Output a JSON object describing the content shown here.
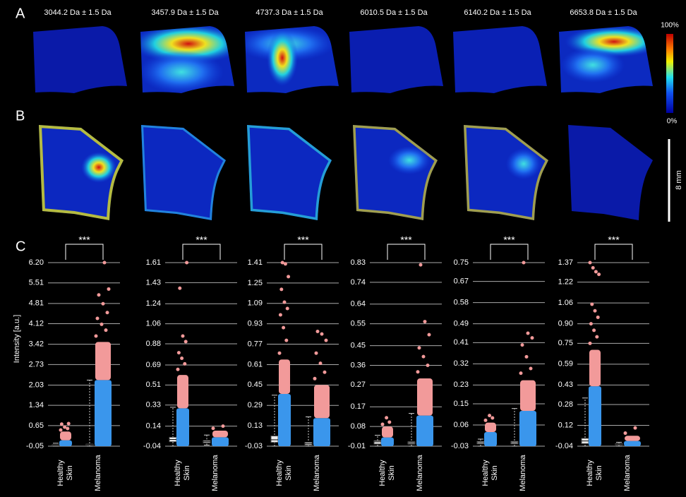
{
  "panels": {
    "a": "A",
    "b": "B",
    "c": "C"
  },
  "mass_labels": [
    "3044.2 Da ± 1.5 Da",
    "3457.9 Da ± 1.5 Da",
    "4737.3 Da ± 1.5 Da",
    "6010.5 Da ± 1.5 Da",
    "6140.2 Da ± 1.5 Da",
    "6653.8 Da ± 1.5 Da"
  ],
  "colorbar": {
    "max": "100%",
    "min": "0%"
  },
  "scale_bar": "8 mm",
  "chart_data": [
    {
      "type": "strip",
      "ylabel": "Intensity [a.u.]",
      "annotation": "***",
      "categories": [
        "Healthy\nSkin",
        "Melanoma"
      ],
      "colors": [
        "#3a96ec",
        "#f29a9a"
      ],
      "ylim": [
        -0.05,
        6.2
      ],
      "yticks": [
        -0.05,
        0.65,
        1.34,
        2.03,
        2.73,
        3.42,
        4.12,
        4.81,
        5.51,
        {
          "value": 6.2,
          "label": "6.20"
        }
      ],
      "series": [
        {
          "box": {
            "min": -0.05,
            "q1": -0.03,
            "median": -0.02,
            "q3": 0.0,
            "max": 0.05
          },
          "blue": [
            -0.05,
            0.15
          ],
          "pink": [
            0.15,
            0.45
          ],
          "outliers": [
            0.5,
            0.55,
            0.6,
            0.7,
            0.72
          ]
        },
        {
          "box": {
            "min": -0.05,
            "q1": -0.01,
            "median": 0.0,
            "q3": 0.02,
            "max": 2.2
          },
          "blue": [
            -0.05,
            2.2
          ],
          "pink": [
            2.2,
            3.5
          ],
          "outliers": [
            3.7,
            3.9,
            4.1,
            4.3,
            4.5,
            4.8,
            5.1,
            5.3,
            6.2
          ]
        }
      ]
    },
    {
      "type": "strip",
      "annotation": "***",
      "categories": [
        "Healthy\nSkin",
        "Melanoma"
      ],
      "colors": [
        "#3a96ec",
        "#f29a9a"
      ],
      "ylim": [
        -0.04,
        1.61
      ],
      "yticks": [
        -0.04,
        0.14,
        0.33,
        0.51,
        0.69,
        0.88,
        1.06,
        1.24,
        1.43,
        1.61
      ],
      "series": [
        {
          "box": {
            "min": -0.04,
            "q1": 0.0,
            "median": 0.02,
            "q3": 0.04,
            "max": 0.31
          },
          "blue": [
            -0.04,
            0.3
          ],
          "pink": [
            0.3,
            0.6
          ],
          "outliers": [
            0.65,
            0.7,
            0.75,
            0.8,
            0.9,
            0.95,
            1.38,
            1.61
          ]
        },
        {
          "box": {
            "min": -0.03,
            "q1": -0.01,
            "median": 0.0,
            "q3": 0.01,
            "max": 0.06
          },
          "blue": [
            -0.04,
            0.04
          ],
          "pink": [
            0.04,
            0.1
          ],
          "outliers": [
            0.12,
            0.14
          ]
        }
      ]
    },
    {
      "type": "strip",
      "annotation": "***",
      "categories": [
        "Healthy\nSkin",
        "Melanoma"
      ],
      "colors": [
        "#3a96ec",
        "#f29a9a"
      ],
      "ylim": [
        -0.03,
        1.41
      ],
      "yticks": [
        -0.03,
        0.13,
        0.29,
        0.45,
        0.61,
        0.77,
        0.93,
        1.09,
        1.25,
        1.41
      ],
      "series": [
        {
          "box": {
            "min": -0.03,
            "q1": 0.0,
            "median": 0.02,
            "q3": 0.05,
            "max": 0.37
          },
          "blue": [
            -0.03,
            0.38
          ],
          "pink": [
            0.38,
            0.65
          ],
          "outliers": [
            0.7,
            0.8,
            0.9,
            1.0,
            1.05,
            1.1,
            1.2,
            1.3,
            1.4,
            1.41
          ]
        },
        {
          "box": {
            "min": -0.03,
            "q1": -0.02,
            "median": -0.01,
            "q3": 0.0,
            "max": 0.2
          },
          "blue": [
            -0.03,
            0.19
          ],
          "pink": [
            0.19,
            0.45
          ],
          "outliers": [
            0.5,
            0.55,
            0.62,
            0.7,
            0.8,
            0.85,
            0.87
          ]
        }
      ]
    },
    {
      "type": "strip",
      "annotation": "***",
      "categories": [
        "Healthy\nSkin",
        "Melanoma"
      ],
      "colors": [
        "#3a96ec",
        "#f29a9a"
      ],
      "ylim": [
        -0.01,
        0.83
      ],
      "yticks": [
        -0.01,
        0.08,
        0.17,
        0.27,
        0.36,
        0.45,
        0.55,
        0.64,
        0.74,
        0.83
      ],
      "series": [
        {
          "box": {
            "min": -0.01,
            "q1": 0.0,
            "median": 0.01,
            "q3": 0.015,
            "max": 0.04
          },
          "blue": [
            -0.01,
            0.03
          ],
          "pink": [
            0.03,
            0.08
          ],
          "outliers": [
            0.09,
            0.1,
            0.12
          ]
        },
        {
          "box": {
            "min": -0.01,
            "q1": 0.0,
            "median": 0.005,
            "q3": 0.01,
            "max": 0.14
          },
          "blue": [
            -0.01,
            0.13
          ],
          "pink": [
            0.13,
            0.3
          ],
          "outliers": [
            0.33,
            0.36,
            0.4,
            0.44,
            0.5,
            0.56,
            0.82
          ]
        }
      ]
    },
    {
      "type": "strip",
      "annotation": "***",
      "categories": [
        "Healthy\nSkin",
        "Melanoma"
      ],
      "colors": [
        "#3a96ec",
        "#f29a9a"
      ],
      "ylim": [
        -0.03,
        0.75
      ],
      "yticks": [
        -0.03,
        0.06,
        0.15,
        0.23,
        0.32,
        0.41,
        0.49,
        0.58,
        0.67,
        0.75
      ],
      "series": [
        {
          "box": {
            "min": -0.03,
            "q1": -0.02,
            "median": -0.015,
            "q3": -0.01,
            "max": 0.0
          },
          "blue": [
            -0.03,
            0.03
          ],
          "pink": [
            0.03,
            0.07
          ],
          "outliers": [
            0.08,
            0.09,
            0.1
          ]
        },
        {
          "box": {
            "min": -0.03,
            "q1": -0.02,
            "median": -0.015,
            "q3": -0.01,
            "max": 0.13
          },
          "blue": [
            -0.03,
            0.12
          ],
          "pink": [
            0.12,
            0.25
          ],
          "outliers": [
            0.28,
            0.3,
            0.35,
            0.4,
            0.43,
            0.45,
            0.75
          ]
        }
      ]
    },
    {
      "type": "strip",
      "annotation": "***",
      "categories": [
        "Healthy\nSkin",
        "Melanoma"
      ],
      "colors": [
        "#3a96ec",
        "#f29a9a"
      ],
      "ylim": [
        -0.04,
        1.37
      ],
      "yticks": [
        -0.04,
        0.12,
        0.28,
        0.43,
        0.59,
        0.75,
        {
          "value": 0.9,
          "label": "0.90"
        },
        1.06,
        1.22,
        1.37
      ],
      "series": [
        {
          "box": {
            "min": -0.04,
            "q1": -0.02,
            "median": 0.0,
            "q3": 0.02,
            "max": 0.33
          },
          "blue": [
            -0.04,
            0.42
          ],
          "pink": [
            0.42,
            0.7
          ],
          "outliers": [
            0.75,
            0.8,
            0.85,
            0.9,
            0.95,
            1.0,
            1.05,
            1.28,
            1.3,
            1.33,
            1.37
          ]
        },
        {
          "box": {
            "min": -0.04,
            "q1": -0.03,
            "median": -0.025,
            "q3": -0.02,
            "max": -0.01
          },
          "blue": [
            -0.04,
            0.0
          ],
          "pink": [
            0.0,
            0.04
          ],
          "outliers": [
            0.06,
            0.1
          ]
        }
      ]
    }
  ]
}
